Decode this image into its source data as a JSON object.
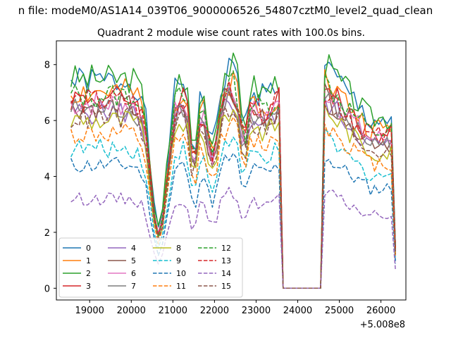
{
  "chart_data": {
    "type": "line",
    "suptitle": "n file: modeM0/AS1A14_039T06_9000006526_54807cztM0_level2_quad_clean",
    "title": "Quadrant 2 module wise count rates with 100.0s bins.",
    "xlabel": "",
    "ylabel": "",
    "x_offset_label": "+5.008e8",
    "xlim": [
      18200,
      26600
    ],
    "ylim": [
      -0.42,
      8.85
    ],
    "xticks": [
      19000,
      20000,
      21000,
      22000,
      23000,
      24000,
      25000,
      26000
    ],
    "xtick_labels": [
      "19000",
      "20000",
      "21000",
      "22000",
      "23000",
      "24000",
      "25000",
      "26000"
    ],
    "yticks": [
      0,
      2,
      4,
      6,
      8
    ],
    "ytick_labels": [
      "0",
      "2",
      "4",
      "6",
      "8"
    ],
    "grid": false,
    "legend": {
      "placement": "lower-left",
      "columns": 4
    },
    "t_start": 18550,
    "t_step": 100,
    "gap": {
      "start": 23600,
      "end": 24650
    },
    "segments": [
      {
        "start": 18550,
        "end": 23550,
        "mode": "dip",
        "dip_rel": 0.35,
        "dip_center": 20650,
        "dip_width": 250
      },
      {
        "start": 24700,
        "end": 26350,
        "mode": "decay",
        "decay_to": 0.82,
        "end_drop_to": 0.2
      }
    ],
    "series": [
      {
        "name": "0",
        "base": 7.4,
        "color": "#1f77b4",
        "dash": "solid",
        "seed": 1
      },
      {
        "name": "1",
        "base": 7.0,
        "color": "#ff7f0e",
        "dash": "solid",
        "seed": 2
      },
      {
        "name": "2",
        "base": 7.5,
        "color": "#2ca02c",
        "dash": "solid",
        "seed": 3
      },
      {
        "name": "3",
        "base": 6.8,
        "color": "#d62728",
        "dash": "solid",
        "seed": 4
      },
      {
        "name": "4",
        "base": 6.3,
        "color": "#9467bd",
        "dash": "solid",
        "seed": 5
      },
      {
        "name": "5",
        "base": 6.5,
        "color": "#8c564b",
        "dash": "solid",
        "seed": 6
      },
      {
        "name": "6",
        "base": 6.6,
        "color": "#e377c2",
        "dash": "solid",
        "seed": 7
      },
      {
        "name": "7",
        "base": 6.4,
        "color": "#7f7f7f",
        "dash": "solid",
        "seed": 8
      },
      {
        "name": "8",
        "base": 6.0,
        "color": "#bcbd22",
        "dash": "solid",
        "seed": 9
      },
      {
        "name": "9",
        "base": 5.0,
        "color": "#17becf",
        "dash": "dashed",
        "seed": 10
      },
      {
        "name": "10",
        "base": 4.4,
        "color": "#1f77b4",
        "dash": "dashed",
        "seed": 11
      },
      {
        "name": "11",
        "base": 5.5,
        "color": "#ff7f0e",
        "dash": "dashed",
        "seed": 12
      },
      {
        "name": "12",
        "base": 6.9,
        "color": "#2ca02c",
        "dash": "dashed",
        "seed": 13
      },
      {
        "name": "13",
        "base": 6.7,
        "color": "#d62728",
        "dash": "dashed",
        "seed": 14
      },
      {
        "name": "14",
        "base": 3.2,
        "color": "#9467bd",
        "dash": "dashed",
        "seed": 15
      },
      {
        "name": "15",
        "base": 6.1,
        "color": "#8c564b",
        "dash": "dashed",
        "seed": 16
      }
    ]
  }
}
